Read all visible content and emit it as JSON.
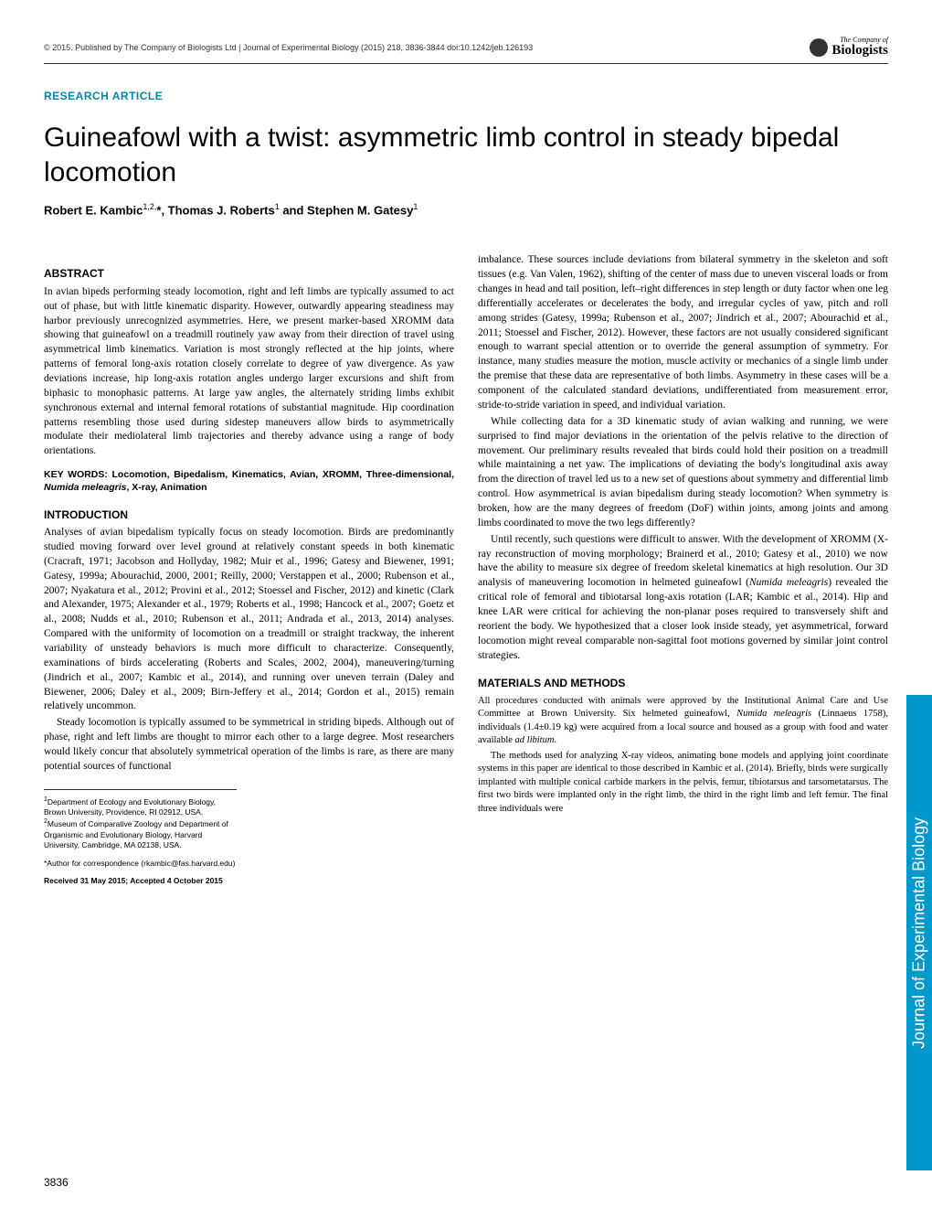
{
  "header": {
    "citation": "© 2015. Published by The Company of Biologists Ltd | Journal of Experimental Biology (2015) 218, 3836-3844 doi:10.1242/jeb.126193",
    "logo_prefix": "The Company of",
    "logo_name": "Biologists"
  },
  "article_type": "RESEARCH ARTICLE",
  "title": "Guineafowl with a twist: asymmetric limb control in steady bipedal locomotion",
  "authors_html": "Robert E. Kambic",
  "authors_rest": ", Thomas J. Roberts",
  "authors_last": " and Stephen M. Gatesy",
  "sup1": "1,2,",
  "sup_star": "*",
  "sup_r": "1",
  "sup_g": "1",
  "sections": {
    "abstract_head": "ABSTRACT",
    "abstract": "In avian bipeds performing steady locomotion, right and left limbs are typically assumed to act out of phase, but with little kinematic disparity. However, outwardly appearing steadiness may harbor previously unrecognized asymmetries. Here, we present marker-based XROMM data showing that guineafowl on a treadmill routinely yaw away from their direction of travel using asymmetrical limb kinematics. Variation is most strongly reflected at the hip joints, where patterns of femoral long-axis rotation closely correlate to degree of yaw divergence. As yaw deviations increase, hip long-axis rotation angles undergo larger excursions and shift from biphasic to monophasic patterns. At large yaw angles, the alternately striding limbs exhibit synchronous external and internal femoral rotations of substantial magnitude. Hip coordination patterns resembling those used during sidestep maneuvers allow birds to asymmetrically modulate their mediolateral limb trajectories and thereby advance using a range of body orientations.",
    "keywords_label": "KEY WORDS: Locomotion, Bipedalism, Kinematics, Avian, XROMM, Three-dimensional, ",
    "keywords_italic": "Numida meleagris",
    "keywords_tail": ", X-ray, Animation",
    "intro_head": "INTRODUCTION",
    "intro_p1": "Analyses of avian bipedalism typically focus on steady locomotion. Birds are predominantly studied moving forward over level ground at relatively constant speeds in both kinematic (Cracraft, 1971; Jacobson and Hollyday, 1982; Muir et al., 1996; Gatesy and Biewener, 1991; Gatesy, 1999a; Abourachid, 2000, 2001; Reilly, 2000; Verstappen et al., 2000; Rubenson et al., 2007; Nyakatura et al., 2012; Provini et al., 2012; Stoessel and Fischer, 2012) and kinetic (Clark and Alexander, 1975; Alexander et al., 1979; Roberts et al., 1998; Hancock et al., 2007; Goetz et al., 2008; Nudds et al., 2010; Rubenson et al., 2011; Andrada et al., 2013, 2014) analyses. Compared with the uniformity of locomotion on a treadmill or straight trackway, the inherent variability of unsteady behaviors is much more difficult to characterize. Consequently, examinations of birds accelerating (Roberts and Scales, 2002, 2004), maneuvering/turning (Jindrich et al., 2007; Kambic et al., 2014), and running over uneven terrain (Daley and Biewener, 2006; Daley et al., 2009; Birn-Jeffery et al., 2014; Gordon et al., 2015) remain relatively uncommon.",
    "intro_p2": "Steady locomotion is typically assumed to be symmetrical in striding bipeds. Although out of phase, right and left limbs are thought to mirror each other to a large degree. Most researchers would likely concur that absolutely symmetrical operation of the limbs is rare, as there are many potential sources of functional",
    "col2_p1": "imbalance. These sources include deviations from bilateral symmetry in the skeleton and soft tissues (e.g. Van Valen, 1962), shifting of the center of mass due to uneven visceral loads or from changes in head and tail position, left–right differences in step length or duty factor when one leg differentially accelerates or decelerates the body, and irregular cycles of yaw, pitch and roll among strides (Gatesy, 1999a; Rubenson et al., 2007; Jindrich et al., 2007; Abourachid et al., 2011; Stoessel and Fischer, 2012). However, these factors are not usually considered significant enough to warrant special attention or to override the general assumption of symmetry. For instance, many studies measure the motion, muscle activity or mechanics of a single limb under the premise that these data are representative of both limbs. Asymmetry in these cases will be a component of the calculated standard deviations, undifferentiated from measurement error, stride-to-stride variation in speed, and individual variation.",
    "col2_p2": "While collecting data for a 3D kinematic study of avian walking and running, we were surprised to find major deviations in the orientation of the pelvis relative to the direction of movement. Our preliminary results revealed that birds could hold their position on a treadmill while maintaining a net yaw. The implications of deviating the body's longitudinal axis away from the direction of travel led us to a new set of questions about symmetry and differential limb control. How asymmetrical is avian bipedalism during steady locomotion? When symmetry is broken, how are the many degrees of freedom (DoF) within joints, among joints and among limbs coordinated to move the two legs differently?",
    "col2_p3_a": "Until recently, such questions were difficult to answer. With the development of XROMM (X-ray reconstruction of moving morphology; Brainerd et al., 2010; Gatesy et al., 2010) we now have the ability to measure six degree of freedom skeletal kinematics at high resolution. Our 3D analysis of maneuvering locomotion in helmeted guineafowl (",
    "col2_p3_italic": "Numida meleagris",
    "col2_p3_b": ") revealed the critical role of femoral and tibiotarsal long-axis rotation (LAR; Kambic et al., 2014). Hip and knee LAR were critical for achieving the non-planar poses required to transversely shift and reorient the body. We hypothesized that a closer look inside steady, yet asymmetrical, forward locomotion might reveal comparable non-sagittal foot motions governed by similar joint control strategies.",
    "methods_head": "MATERIALS AND METHODS",
    "methods_p1_a": "All procedures conducted with animals were approved by the Institutional Animal Care and Use Committee at Brown University. Six helmeted guineafowl, ",
    "methods_p1_italic1": "Numida meleagris",
    "methods_p1_b": " (Linnaeus 1758), individuals (1.4±0.19 kg) were acquired from a local source and housed as a group with food and water available ",
    "methods_p1_italic2": "ad libitum",
    "methods_p1_c": ".",
    "methods_p2": "The methods used for analyzing X-ray videos, animating bone models and applying joint coordinate systems in this paper are identical to those described in Kambic et al. (2014). Briefly, birds were surgically implanted with multiple conical carbide markers in the pelvis, femur, tibiotarsus and tarsometatarsus. The first two birds were implanted only in the right limb, the third in the right limb and left femur. The final three individuals were"
  },
  "affiliations": {
    "dept": "Department of Ecology and Evolutionary Biology, Brown University, Providence, RI 02912, USA. ",
    "dept2": "Museum of Comparative Zoology and Department of Organismic and Evolutionary Biology, Harvard University, Cambridge, MA 02138, USA.",
    "corr": "*Author for correspondence (rkambic@fas.harvard.edu)",
    "received": "Received 31 May 2015; Accepted 4 October 2015"
  },
  "page_number": "3836",
  "side_tab": "Journal of Experimental Biology"
}
